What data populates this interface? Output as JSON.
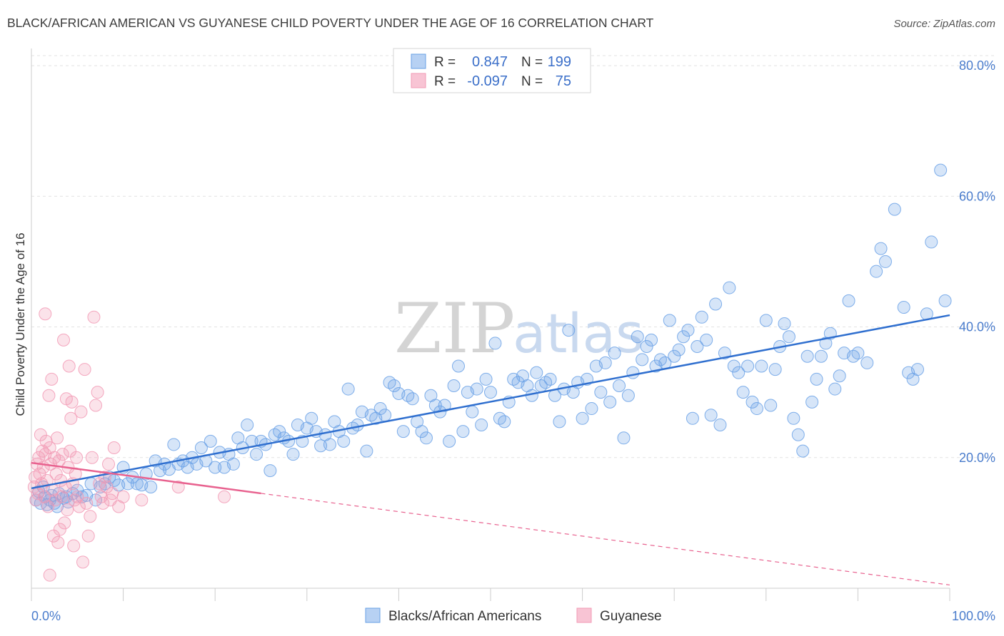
{
  "chart_data": {
    "type": "scatter",
    "title": "BLACK/AFRICAN AMERICAN VS GUYANESE CHILD POVERTY UNDER THE AGE OF 16 CORRELATION CHART",
    "source": "Source: ZipAtlas.com",
    "ylabel": "Child Poverty Under the Age of 16",
    "xlabel": "",
    "xlim": [
      0,
      100
    ],
    "ylim": [
      0,
      83.5
    ],
    "x_tick_labels": {
      "min": "0.0%",
      "max": "100.0%"
    },
    "y_ticks": [
      {
        "value": 20,
        "label": "20.0%"
      },
      {
        "value": 40,
        "label": "40.0%"
      },
      {
        "value": 60,
        "label": "60.0%"
      },
      {
        "value": 80,
        "label": "80.0%"
      }
    ],
    "watermark": {
      "part1": "ZIP",
      "part2": "atlas"
    },
    "legend": {
      "r_label": "R =",
      "n_label": "N =",
      "entries": [
        {
          "r": "0.847",
          "n": "199"
        },
        {
          "r": "-0.097",
          "n": "75"
        }
      ]
    },
    "series": [
      {
        "name": "Blacks/African Americans",
        "color": "#6aa1e6",
        "line_color": "#2f6fcf",
        "trend": {
          "x0": 0,
          "y0": 15.3,
          "x1": 100,
          "y1": 41.8
        },
        "points": [
          [
            0.5,
            13.5
          ],
          [
            0.8,
            14.8
          ],
          [
            1.0,
            13.0
          ],
          [
            1.3,
            15.5
          ],
          [
            1.5,
            14.0
          ],
          [
            1.7,
            12.8
          ],
          [
            2.0,
            13.5
          ],
          [
            2.2,
            14.2
          ],
          [
            2.5,
            13.0
          ],
          [
            2.8,
            12.5
          ],
          [
            3.0,
            14.5
          ],
          [
            3.5,
            13.8
          ],
          [
            3.8,
            14.0
          ],
          [
            4.0,
            13.2
          ],
          [
            4.5,
            14.5
          ],
          [
            5.0,
            15.0
          ],
          [
            5.5,
            14.0
          ],
          [
            6.0,
            14.2
          ],
          [
            6.5,
            16.0
          ],
          [
            7.0,
            13.5
          ],
          [
            7.5,
            15.5
          ],
          [
            8.0,
            16.0
          ],
          [
            8.5,
            17.0
          ],
          [
            9.0,
            16.5
          ],
          [
            9.5,
            15.8
          ],
          [
            10.0,
            18.5
          ],
          [
            10.5,
            16.0
          ],
          [
            11.0,
            17.0
          ],
          [
            11.5,
            16.0
          ],
          [
            12.0,
            15.8
          ],
          [
            12.5,
            17.5
          ],
          [
            13.0,
            15.5
          ],
          [
            13.5,
            19.5
          ],
          [
            14.0,
            18.0
          ],
          [
            14.5,
            19.0
          ],
          [
            15.0,
            18.2
          ],
          [
            15.5,
            22.0
          ],
          [
            16.0,
            19.0
          ],
          [
            16.5,
            19.5
          ],
          [
            17.0,
            18.5
          ],
          [
            17.5,
            20.0
          ],
          [
            18.0,
            19.0
          ],
          [
            18.5,
            21.5
          ],
          [
            19.0,
            19.5
          ],
          [
            19.5,
            22.5
          ],
          [
            20.0,
            18.5
          ],
          [
            20.5,
            20.8
          ],
          [
            21.0,
            18.5
          ],
          [
            21.5,
            20.5
          ],
          [
            22.0,
            19.0
          ],
          [
            22.5,
            23.0
          ],
          [
            23.0,
            21.5
          ],
          [
            23.5,
            25.0
          ],
          [
            24.0,
            22.5
          ],
          [
            24.5,
            20.5
          ],
          [
            25.0,
            22.5
          ],
          [
            25.5,
            22.0
          ],
          [
            26.0,
            18.0
          ],
          [
            26.5,
            23.5
          ],
          [
            27.0,
            24.0
          ],
          [
            27.5,
            23.0
          ],
          [
            28.0,
            22.5
          ],
          [
            28.5,
            20.5
          ],
          [
            29.0,
            25.0
          ],
          [
            29.5,
            22.5
          ],
          [
            30.0,
            24.5
          ],
          [
            30.5,
            26.0
          ],
          [
            31.0,
            24.0
          ],
          [
            31.5,
            21.8
          ],
          [
            32.0,
            23.5
          ],
          [
            32.5,
            22.0
          ],
          [
            33.0,
            25.5
          ],
          [
            33.5,
            24.0
          ],
          [
            34.0,
            22.5
          ],
          [
            34.5,
            30.5
          ],
          [
            35.0,
            24.5
          ],
          [
            35.5,
            25.0
          ],
          [
            36.0,
            27.0
          ],
          [
            36.5,
            21.0
          ],
          [
            37.0,
            26.5
          ],
          [
            37.5,
            26.0
          ],
          [
            38.0,
            27.5
          ],
          [
            38.5,
            26.5
          ],
          [
            39.0,
            31.5
          ],
          [
            39.5,
            31.0
          ],
          [
            40.0,
            29.8
          ],
          [
            40.5,
            24.0
          ],
          [
            41.0,
            29.5
          ],
          [
            41.5,
            29.0
          ],
          [
            42.0,
            25.5
          ],
          [
            42.5,
            24.0
          ],
          [
            43.0,
            23.0
          ],
          [
            43.5,
            29.5
          ],
          [
            44.0,
            28.0
          ],
          [
            44.5,
            27.0
          ],
          [
            45.0,
            28.0
          ],
          [
            45.5,
            22.5
          ],
          [
            46.0,
            31.0
          ],
          [
            46.5,
            34.0
          ],
          [
            47.0,
            24.0
          ],
          [
            47.5,
            30.0
          ],
          [
            48.0,
            27.0
          ],
          [
            48.5,
            30.5
          ],
          [
            49.0,
            25.0
          ],
          [
            49.5,
            32.0
          ],
          [
            50.0,
            30.0
          ],
          [
            50.5,
            37.5
          ],
          [
            51.0,
            26.0
          ],
          [
            51.5,
            25.5
          ],
          [
            52.0,
            28.5
          ],
          [
            52.5,
            32.0
          ],
          [
            53.0,
            31.5
          ],
          [
            53.5,
            32.5
          ],
          [
            54.0,
            31.0
          ],
          [
            54.5,
            29.5
          ],
          [
            55.0,
            33.0
          ],
          [
            55.5,
            31.0
          ],
          [
            56.0,
            31.5
          ],
          [
            56.5,
            32.0
          ],
          [
            57.0,
            29.5
          ],
          [
            57.5,
            25.5
          ],
          [
            58.0,
            30.5
          ],
          [
            58.5,
            39.5
          ],
          [
            59.0,
            30.0
          ],
          [
            59.5,
            31.5
          ],
          [
            60.0,
            26.0
          ],
          [
            60.5,
            32.0
          ],
          [
            61.0,
            27.5
          ],
          [
            61.5,
            34.0
          ],
          [
            62.0,
            30.0
          ],
          [
            62.5,
            34.5
          ],
          [
            63.0,
            28.5
          ],
          [
            63.5,
            36.0
          ],
          [
            64.0,
            31.0
          ],
          [
            64.5,
            23.0
          ],
          [
            65.0,
            29.5
          ],
          [
            65.5,
            33.0
          ],
          [
            66.0,
            38.5
          ],
          [
            66.5,
            35.0
          ],
          [
            67.0,
            37.0
          ],
          [
            67.5,
            38.0
          ],
          [
            68.0,
            34.0
          ],
          [
            68.5,
            35.0
          ],
          [
            69.0,
            34.5
          ],
          [
            69.5,
            41.0
          ],
          [
            70.0,
            35.5
          ],
          [
            70.5,
            36.5
          ],
          [
            71.0,
            38.5
          ],
          [
            71.5,
            39.5
          ],
          [
            72.0,
            26.0
          ],
          [
            72.5,
            37.0
          ],
          [
            73.0,
            41.5
          ],
          [
            73.5,
            38.0
          ],
          [
            74.0,
            26.5
          ],
          [
            74.5,
            43.5
          ],
          [
            75.0,
            25.0
          ],
          [
            75.5,
            36.0
          ],
          [
            76.0,
            46.0
          ],
          [
            76.5,
            34.0
          ],
          [
            77.0,
            33.0
          ],
          [
            77.5,
            30.0
          ],
          [
            78.0,
            34.0
          ],
          [
            78.5,
            28.5
          ],
          [
            79.0,
            27.5
          ],
          [
            79.5,
            34.0
          ],
          [
            80.0,
            41.0
          ],
          [
            80.5,
            28.0
          ],
          [
            81.0,
            33.5
          ],
          [
            81.5,
            37.0
          ],
          [
            82.0,
            40.5
          ],
          [
            82.5,
            38.5
          ],
          [
            83.0,
            26.0
          ],
          [
            83.5,
            23.5
          ],
          [
            84.0,
            21.0
          ],
          [
            84.5,
            35.5
          ],
          [
            85.0,
            28.5
          ],
          [
            85.5,
            32.0
          ],
          [
            86.0,
            35.5
          ],
          [
            86.5,
            37.5
          ],
          [
            87.0,
            39.0
          ],
          [
            87.5,
            30.5
          ],
          [
            88.0,
            32.5
          ],
          [
            88.5,
            36.0
          ],
          [
            89.0,
            44.0
          ],
          [
            89.5,
            35.5
          ],
          [
            90.0,
            36.0
          ],
          [
            91.0,
            34.5
          ],
          [
            92.0,
            48.5
          ],
          [
            92.5,
            52.0
          ],
          [
            93.0,
            50.0
          ],
          [
            94.0,
            58.0
          ],
          [
            95.0,
            43.0
          ],
          [
            95.5,
            33.0
          ],
          [
            96.0,
            32.0
          ],
          [
            96.5,
            33.5
          ],
          [
            97.5,
            42.0
          ],
          [
            98.0,
            53.0
          ],
          [
            99.0,
            64.0
          ],
          [
            99.5,
            44.0
          ]
        ]
      },
      {
        "name": "Guyanese",
        "color": "#f29ab5",
        "line_color": "#e8628f",
        "trend": {
          "x0": 0,
          "y0": 19.2,
          "x1": 100,
          "y1": 0.5,
          "solid_until": 25
        },
        "points": [
          [
            0.3,
            15.5
          ],
          [
            0.4,
            17.0
          ],
          [
            0.5,
            13.5
          ],
          [
            0.6,
            19.0
          ],
          [
            0.7,
            14.5
          ],
          [
            0.8,
            20.0
          ],
          [
            0.9,
            17.5
          ],
          [
            1.0,
            23.5
          ],
          [
            1.1,
            16.0
          ],
          [
            1.2,
            21.0
          ],
          [
            1.3,
            18.5
          ],
          [
            1.4,
            14.0
          ],
          [
            1.5,
            20.5
          ],
          [
            1.6,
            22.5
          ],
          [
            1.7,
            16.5
          ],
          [
            1.8,
            12.5
          ],
          [
            1.9,
            29.5
          ],
          [
            2.0,
            21.5
          ],
          [
            2.1,
            19.0
          ],
          [
            2.2,
            32.0
          ],
          [
            2.3,
            15.0
          ],
          [
            2.4,
            8.0
          ],
          [
            2.5,
            20.0
          ],
          [
            2.6,
            13.5
          ],
          [
            2.7,
            17.5
          ],
          [
            2.8,
            23.0
          ],
          [
            2.9,
            7.0
          ],
          [
            3.0,
            19.5
          ],
          [
            3.1,
            9.0
          ],
          [
            3.2,
            16.5
          ],
          [
            3.3,
            14.0
          ],
          [
            3.4,
            20.5
          ],
          [
            3.5,
            38.0
          ],
          [
            3.6,
            10.0
          ],
          [
            3.7,
            15.5
          ],
          [
            3.8,
            29.0
          ],
          [
            3.9,
            12.0
          ],
          [
            4.0,
            18.5
          ],
          [
            4.1,
            34.0
          ],
          [
            4.2,
            21.0
          ],
          [
            4.3,
            26.0
          ],
          [
            4.4,
            28.5
          ],
          [
            4.5,
            16.0
          ],
          [
            4.6,
            6.5
          ],
          [
            4.7,
            13.5
          ],
          [
            4.8,
            17.5
          ],
          [
            4.9,
            20.0
          ],
          [
            5.0,
            14.0
          ],
          [
            5.2,
            12.5
          ],
          [
            5.4,
            27.0
          ],
          [
            5.6,
            4.0
          ],
          [
            5.8,
            33.5
          ],
          [
            6.0,
            13.0
          ],
          [
            6.2,
            8.0
          ],
          [
            6.4,
            11.0
          ],
          [
            6.6,
            20.0
          ],
          [
            6.8,
            41.5
          ],
          [
            7.0,
            28.0
          ],
          [
            7.2,
            30.0
          ],
          [
            7.4,
            16.0
          ],
          [
            7.6,
            14.0
          ],
          [
            7.8,
            13.0
          ],
          [
            8.0,
            17.0
          ],
          [
            8.2,
            15.5
          ],
          [
            8.4,
            19.0
          ],
          [
            8.6,
            13.5
          ],
          [
            1.5,
            42.0
          ],
          [
            2.0,
            2.0
          ],
          [
            8.8,
            14.5
          ],
          [
            9.0,
            21.5
          ],
          [
            9.5,
            12.5
          ],
          [
            10.0,
            14.0
          ],
          [
            12.0,
            13.5
          ],
          [
            16.0,
            15.5
          ],
          [
            21.0,
            14.0
          ]
        ]
      }
    ]
  }
}
